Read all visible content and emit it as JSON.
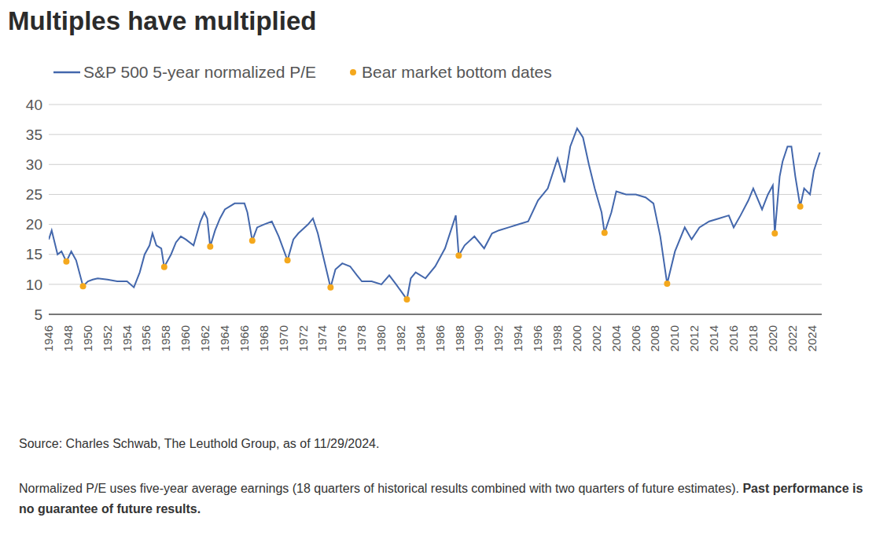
{
  "chart_data": {
    "type": "line",
    "title": "Multiples have multiplied",
    "source": "Source: Charles Schwab, The Leuthold Group, as of 11/29/2024.",
    "note": "Normalized P/E uses five-year average earnings (18 quarters of historical results combined with two quarters of future estimates).",
    "note_bold": "Past performance is no guarantee of future results.",
    "legend": "top-left",
    "grid": true,
    "xlim": [
      1946,
      2025
    ],
    "xticks": [
      1946,
      1948,
      1950,
      1952,
      1954,
      1956,
      1958,
      1960,
      1962,
      1964,
      1966,
      1968,
      1970,
      1972,
      1974,
      1976,
      1978,
      1980,
      1982,
      1984,
      1986,
      1988,
      1990,
      1992,
      1994,
      1996,
      1998,
      2000,
      2002,
      2004,
      2006,
      2008,
      2010,
      2012,
      2014,
      2016,
      2018,
      2020,
      2022,
      2024
    ],
    "ylim": [
      5,
      40
    ],
    "yticks": [
      5,
      10,
      15,
      20,
      25,
      30,
      35,
      40
    ],
    "series": [
      {
        "name": "S&P 500 5-year normalized P/E",
        "type": "line",
        "color": "#4367ac",
        "line_style": "solid",
        "x": [
          1946.0,
          1946.3,
          1946.6,
          1946.9,
          1947.3,
          1947.8,
          1948.3,
          1948.8,
          1949.5,
          1950.0,
          1950.5,
          1951.0,
          1952.0,
          1953.0,
          1954.0,
          1954.7,
          1955.3,
          1955.8,
          1956.3,
          1956.6,
          1957.0,
          1957.5,
          1957.8,
          1958.5,
          1959.0,
          1959.5,
          1960.0,
          1960.8,
          1961.5,
          1961.9,
          1962.2,
          1962.5,
          1963.0,
          1963.5,
          1964.0,
          1965.0,
          1966.0,
          1966.3,
          1966.8,
          1967.3,
          1968.0,
          1968.8,
          1969.5,
          1970.4,
          1971.0,
          1971.5,
          1972.5,
          1973.0,
          1973.5,
          1974.0,
          1974.8,
          1975.3,
          1976.0,
          1976.8,
          1977.5,
          1978.0,
          1979.0,
          1980.0,
          1980.8,
          1981.5,
          1982.6,
          1983.0,
          1983.5,
          1984.5,
          1985.5,
          1986.5,
          1987.6,
          1987.9,
          1988.5,
          1989.5,
          1990.5,
          1991.3,
          1992.0,
          1993.0,
          1994.0,
          1995.0,
          1996.0,
          1997.0,
          1998.0,
          1998.7,
          1999.3,
          2000.0,
          2000.6,
          2001.2,
          2001.8,
          2002.5,
          2002.8,
          2003.5,
          2004.0,
          2005.0,
          2006.0,
          2007.0,
          2007.8,
          2008.5,
          2009.2,
          2010.0,
          2011.0,
          2011.7,
          2012.5,
          2013.5,
          2014.5,
          2015.5,
          2016.0,
          2016.7,
          2017.5,
          2018.0,
          2018.9,
          2019.5,
          2020.0,
          2020.2,
          2020.7,
          2021.0,
          2021.5,
          2021.9,
          2022.3,
          2022.8,
          2023.2,
          2023.8,
          2024.2,
          2024.8
        ],
        "values": [
          17.5,
          19.0,
          17.0,
          15.0,
          15.5,
          13.8,
          15.5,
          14.0,
          9.7,
          10.5,
          10.8,
          11.0,
          10.8,
          10.5,
          10.5,
          9.5,
          12.0,
          15.0,
          16.5,
          18.5,
          16.5,
          16.0,
          12.9,
          15.0,
          17.0,
          18.0,
          17.5,
          16.5,
          20.5,
          22.0,
          21.0,
          16.3,
          19.0,
          21.0,
          22.5,
          23.5,
          23.5,
          22.0,
          17.3,
          19.5,
          20.0,
          20.5,
          18.0,
          14.0,
          17.5,
          18.5,
          20.0,
          21.0,
          18.5,
          15.0,
          9.5,
          12.5,
          13.5,
          13.0,
          11.5,
          10.5,
          10.5,
          10.0,
          11.5,
          10.0,
          7.5,
          11.0,
          12.0,
          11.0,
          13.0,
          16.0,
          21.5,
          14.8,
          16.5,
          18.0,
          16.0,
          18.5,
          19.0,
          19.5,
          20.0,
          20.5,
          24.0,
          26.0,
          31.0,
          27.0,
          33.0,
          36.0,
          34.5,
          30.0,
          26.0,
          22.0,
          18.6,
          22.0,
          25.5,
          25.0,
          25.0,
          24.5,
          23.5,
          18.0,
          10.1,
          15.5,
          19.5,
          17.5,
          19.5,
          20.5,
          21.0,
          21.5,
          19.5,
          21.5,
          24.0,
          26.0,
          22.5,
          25.0,
          26.5,
          18.5,
          28.0,
          30.5,
          33.0,
          33.0,
          28.0,
          23.0,
          26.0,
          25.0,
          29.0,
          32.0
        ]
      },
      {
        "name": "Bear market bottom dates",
        "type": "scatter",
        "marker": "circle",
        "color": "#f4a81d",
        "x": [
          1947.8,
          1949.5,
          1957.8,
          1962.5,
          1966.8,
          1970.4,
          1974.8,
          1982.6,
          1987.9,
          2002.8,
          2009.2,
          2020.2,
          2022.8
        ],
        "values": [
          13.8,
          9.7,
          12.9,
          16.3,
          17.3,
          14.0,
          9.5,
          7.5,
          14.8,
          18.6,
          10.1,
          18.5,
          23.0
        ]
      }
    ]
  }
}
